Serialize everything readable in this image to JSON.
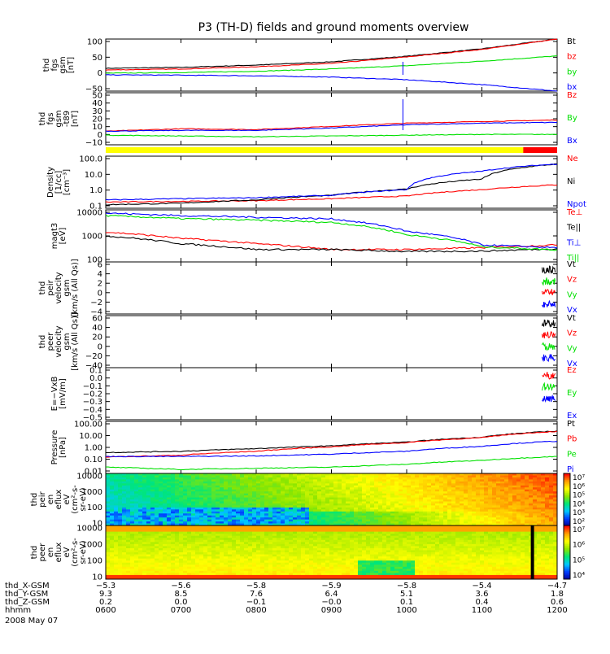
{
  "title": "P3 (TH-D) fields and ground moments overview",
  "date": "2008 May 07",
  "colors": {
    "black": "#000000",
    "red": "#ff0000",
    "green": "#00e000",
    "blue": "#0000ff",
    "yellow": "#ffff00",
    "cyan": "#00ffff"
  },
  "panels": [
    {
      "id": "fgs-gsm",
      "ylabel": [
        "thd",
        "fgs",
        "gsm",
        "[nT]"
      ],
      "yticks": [
        "100",
        "50",
        "0",
        "−50"
      ],
      "legend": [
        {
          "text": "Bt",
          "color": "#000000"
        },
        {
          "text": "bz",
          "color": "#ff0000"
        },
        {
          "text": "by",
          "color": "#00e000"
        },
        {
          "text": "bx",
          "color": "#0000ff"
        }
      ]
    },
    {
      "id": "fgs-gsm-t89",
      "ylabel": [
        "thd",
        "fgs",
        "gsm",
        "-t89",
        "[nT]"
      ],
      "yticks": [
        "50",
        "40",
        "30",
        "20",
        "10",
        "0",
        "−10"
      ],
      "legend": [
        {
          "text": "Bz",
          "color": "#ff0000"
        },
        {
          "text": "By",
          "color": "#00e000"
        },
        {
          "text": "Bx",
          "color": "#0000ff"
        }
      ]
    },
    {
      "id": "density",
      "ylabel": [
        "Density",
        "[1/cc]",
        "[cm⁻³]"
      ],
      "yticks": [
        "100.0",
        "10.0",
        "1.0",
        "0.1"
      ],
      "legend": [
        {
          "text": "Ne",
          "color": "#ff0000"
        },
        {
          "text": "Ni",
          "color": "#000000"
        },
        {
          "text": "Npot",
          "color": "#0000ff"
        }
      ]
    },
    {
      "id": "temperature",
      "ylabel": [
        "magt3",
        "[eV]"
      ],
      "yticks": [
        "10000",
        "1000",
        "100"
      ],
      "legend": [
        {
          "text": "Te⊥",
          "color": "#ff0000"
        },
        {
          "text": "Te||",
          "color": "#000000"
        },
        {
          "text": "Ti⊥",
          "color": "#0000ff"
        },
        {
          "text": "Ti||",
          "color": "#00e000"
        }
      ]
    },
    {
      "id": "peir-velocity",
      "ylabel": [
        "thd",
        "peir",
        "velocity",
        "gsm",
        "[km/s (All Qs)]"
      ],
      "yticks": [
        "6",
        "4",
        "2",
        "0",
        "−2",
        "−4"
      ],
      "legend": [
        {
          "text": "Vt",
          "color": "#000000"
        },
        {
          "text": "Vz",
          "color": "#ff0000"
        },
        {
          "text": "Vy",
          "color": "#00e000"
        },
        {
          "text": "Vx",
          "color": "#0000ff"
        }
      ]
    },
    {
      "id": "peer-velocity",
      "ylabel": [
        "thd",
        "peer",
        "velocity",
        "gsm",
        "[km/s (All Qs)]"
      ],
      "yticks": [
        "60",
        "40",
        "20",
        "0",
        "−20",
        "−40"
      ],
      "legend": [
        {
          "text": "Vt",
          "color": "#000000"
        },
        {
          "text": "Vz",
          "color": "#ff0000"
        },
        {
          "text": "Vy",
          "color": "#00e000"
        },
        {
          "text": "Vx",
          "color": "#0000ff"
        }
      ]
    },
    {
      "id": "efield",
      "ylabel": [
        "E=−VxB",
        "[mV/m]"
      ],
      "yticks": [
        "0.1",
        "0.0",
        "−0.1",
        "−0.2",
        "−0.3",
        "−0.4",
        "−0.5"
      ],
      "legend": [
        {
          "text": "Ez",
          "color": "#ff0000"
        },
        {
          "text": "Ey",
          "color": "#00e000"
        },
        {
          "text": "Ex",
          "color": "#0000ff"
        }
      ]
    },
    {
      "id": "pressure",
      "ylabel": [
        "Pressure",
        "[nPa]"
      ],
      "yticks": [
        "100.00",
        "10.00",
        "1.00",
        "0.10",
        "0.01"
      ],
      "legend": [
        {
          "text": "Pt",
          "color": "#000000"
        },
        {
          "text": "Pb",
          "color": "#ff0000"
        },
        {
          "text": "Pe",
          "color": "#00e000"
        },
        {
          "text": "Pi",
          "color": "#0000ff"
        }
      ]
    },
    {
      "id": "peir-spec",
      "ylabel": [
        "thd",
        "peir",
        "en",
        "eflux",
        "eV",
        "(cm²-s-",
        "sr-eV)"
      ],
      "yticks": [
        "10000",
        "1000",
        "100",
        "10"
      ],
      "colorbar": [
        "10⁷",
        "10⁶",
        "10⁵",
        "10⁴",
        "10³",
        "10²"
      ]
    },
    {
      "id": "peer-spec",
      "ylabel": [
        "thd",
        "peer",
        "en",
        "eflux",
        "eV",
        "(cm²-s-",
        "sr-eV)"
      ],
      "yticks": [
        "10000",
        "1000",
        "100",
        "10"
      ],
      "colorbar": [
        "10⁷",
        "10⁶",
        "10⁵",
        "10⁴"
      ]
    }
  ],
  "axis": {
    "row_labels": [
      "thd_X-GSM",
      "thd_Y-GSM",
      "thd_Z-GSM",
      "hhmm"
    ],
    "columns": [
      {
        "x_gsm": "−5.3",
        "y_gsm": "9.3",
        "z_gsm": "0.2",
        "hhmm": "0600"
      },
      {
        "x_gsm": "−5.6",
        "y_gsm": "8.5",
        "z_gsm": "0.0",
        "hhmm": "0700"
      },
      {
        "x_gsm": "−5.8",
        "y_gsm": "7.6",
        "z_gsm": "−0.1",
        "hhmm": "0800"
      },
      {
        "x_gsm": "−5.9",
        "y_gsm": "6.4",
        "z_gsm": "−0.0",
        "hhmm": "0900"
      },
      {
        "x_gsm": "−5.8",
        "y_gsm": "5.1",
        "z_gsm": "0.1",
        "hhmm": "1000"
      },
      {
        "x_gsm": "−5.4",
        "y_gsm": "3.6",
        "z_gsm": "0.4",
        "hhmm": "1100"
      },
      {
        "x_gsm": "−4.7",
        "y_gsm": "1.8",
        "z_gsm": "0.6",
        "hhmm": "1200"
      }
    ]
  },
  "chart_data": [
    {
      "type": "line",
      "panel": "fgs-gsm",
      "x_hours": [
        6,
        7,
        8,
        9,
        10,
        11,
        12
      ],
      "series": [
        {
          "name": "Bt",
          "values": [
            20,
            23,
            30,
            40,
            57,
            80,
            110
          ]
        },
        {
          "name": "bz",
          "values": [
            15,
            18,
            25,
            35,
            55,
            78,
            110
          ]
        },
        {
          "name": "by",
          "values": [
            5,
            7,
            11,
            18,
            28,
            42,
            58
          ]
        },
        {
          "name": "bx",
          "values": [
            0,
            -1,
            -3,
            -7,
            -15,
            -30,
            -50
          ]
        }
      ],
      "ylim": [
        -50,
        110
      ]
    },
    {
      "type": "line",
      "panel": "fgs-gsm-t89",
      "x_hours": [
        6,
        7,
        8,
        9,
        10,
        11,
        12
      ],
      "series": [
        {
          "name": "Bz",
          "values": [
            2,
            5,
            4,
            8,
            12,
            14,
            16
          ]
        },
        {
          "name": "By",
          "values": [
            -3,
            -4,
            -5,
            -4,
            -3,
            -2,
            -2
          ]
        },
        {
          "name": "Bx",
          "values": [
            2,
            3,
            3,
            6,
            10,
            12,
            13
          ]
        }
      ],
      "ylim": [
        -15,
        50
      ]
    },
    {
      "type": "line",
      "panel": "density",
      "yscale": "log",
      "x_hours": [
        6,
        7,
        8,
        9,
        10,
        11,
        12
      ],
      "series": [
        {
          "name": "Ne",
          "values": [
            0.18,
            0.2,
            0.22,
            0.3,
            0.45,
            1.2,
            2.5
          ]
        },
        {
          "name": "Ni",
          "values": [
            0.12,
            0.15,
            0.25,
            0.5,
            1.3,
            6,
            60
          ]
        },
        {
          "name": "Npot",
          "values": [
            0.25,
            0.3,
            0.35,
            0.5,
            1.2,
            20,
            60
          ]
        }
      ],
      "ylim": [
        0.07,
        200
      ]
    },
    {
      "type": "line",
      "panel": "temperature",
      "yscale": "log",
      "x_hours": [
        6,
        7,
        8,
        9,
        10,
        11,
        12
      ],
      "series": [
        {
          "name": "Te⊥",
          "values": [
            1400,
            800,
            500,
            300,
            300,
            350,
            450
          ]
        },
        {
          "name": "Te||",
          "values": [
            1000,
            500,
            300,
            300,
            250,
            260,
            320
          ]
        },
        {
          "name": "Ti⊥",
          "values": [
            7500,
            6000,
            5200,
            4500,
            1500,
            450,
            350
          ]
        },
        {
          "name": "Ti||",
          "values": [
            6000,
            4600,
            4000,
            3300,
            1100,
            380,
            290
          ]
        }
      ],
      "ylim": [
        100,
        10000
      ]
    },
    {
      "type": "line",
      "panel": "pressure",
      "yscale": "log",
      "x_hours": [
        6,
        7,
        8,
        9,
        10,
        11,
        12
      ],
      "series": [
        {
          "name": "Pt",
          "values": [
            0.4,
            0.5,
            0.8,
            1.3,
            2.5,
            6,
            18
          ]
        },
        {
          "name": "Pb",
          "values": [
            0.18,
            0.25,
            0.5,
            1.1,
            2.3,
            5.5,
            17
          ]
        },
        {
          "name": "Pe",
          "values": [
            0.03,
            0.02,
            0.025,
            0.03,
            0.05,
            0.1,
            0.2
          ]
        },
        {
          "name": "Pi",
          "values": [
            0.2,
            0.2,
            0.22,
            0.3,
            0.5,
            1.2,
            3
          ]
        }
      ],
      "ylim": [
        0.01,
        100
      ]
    }
  ]
}
